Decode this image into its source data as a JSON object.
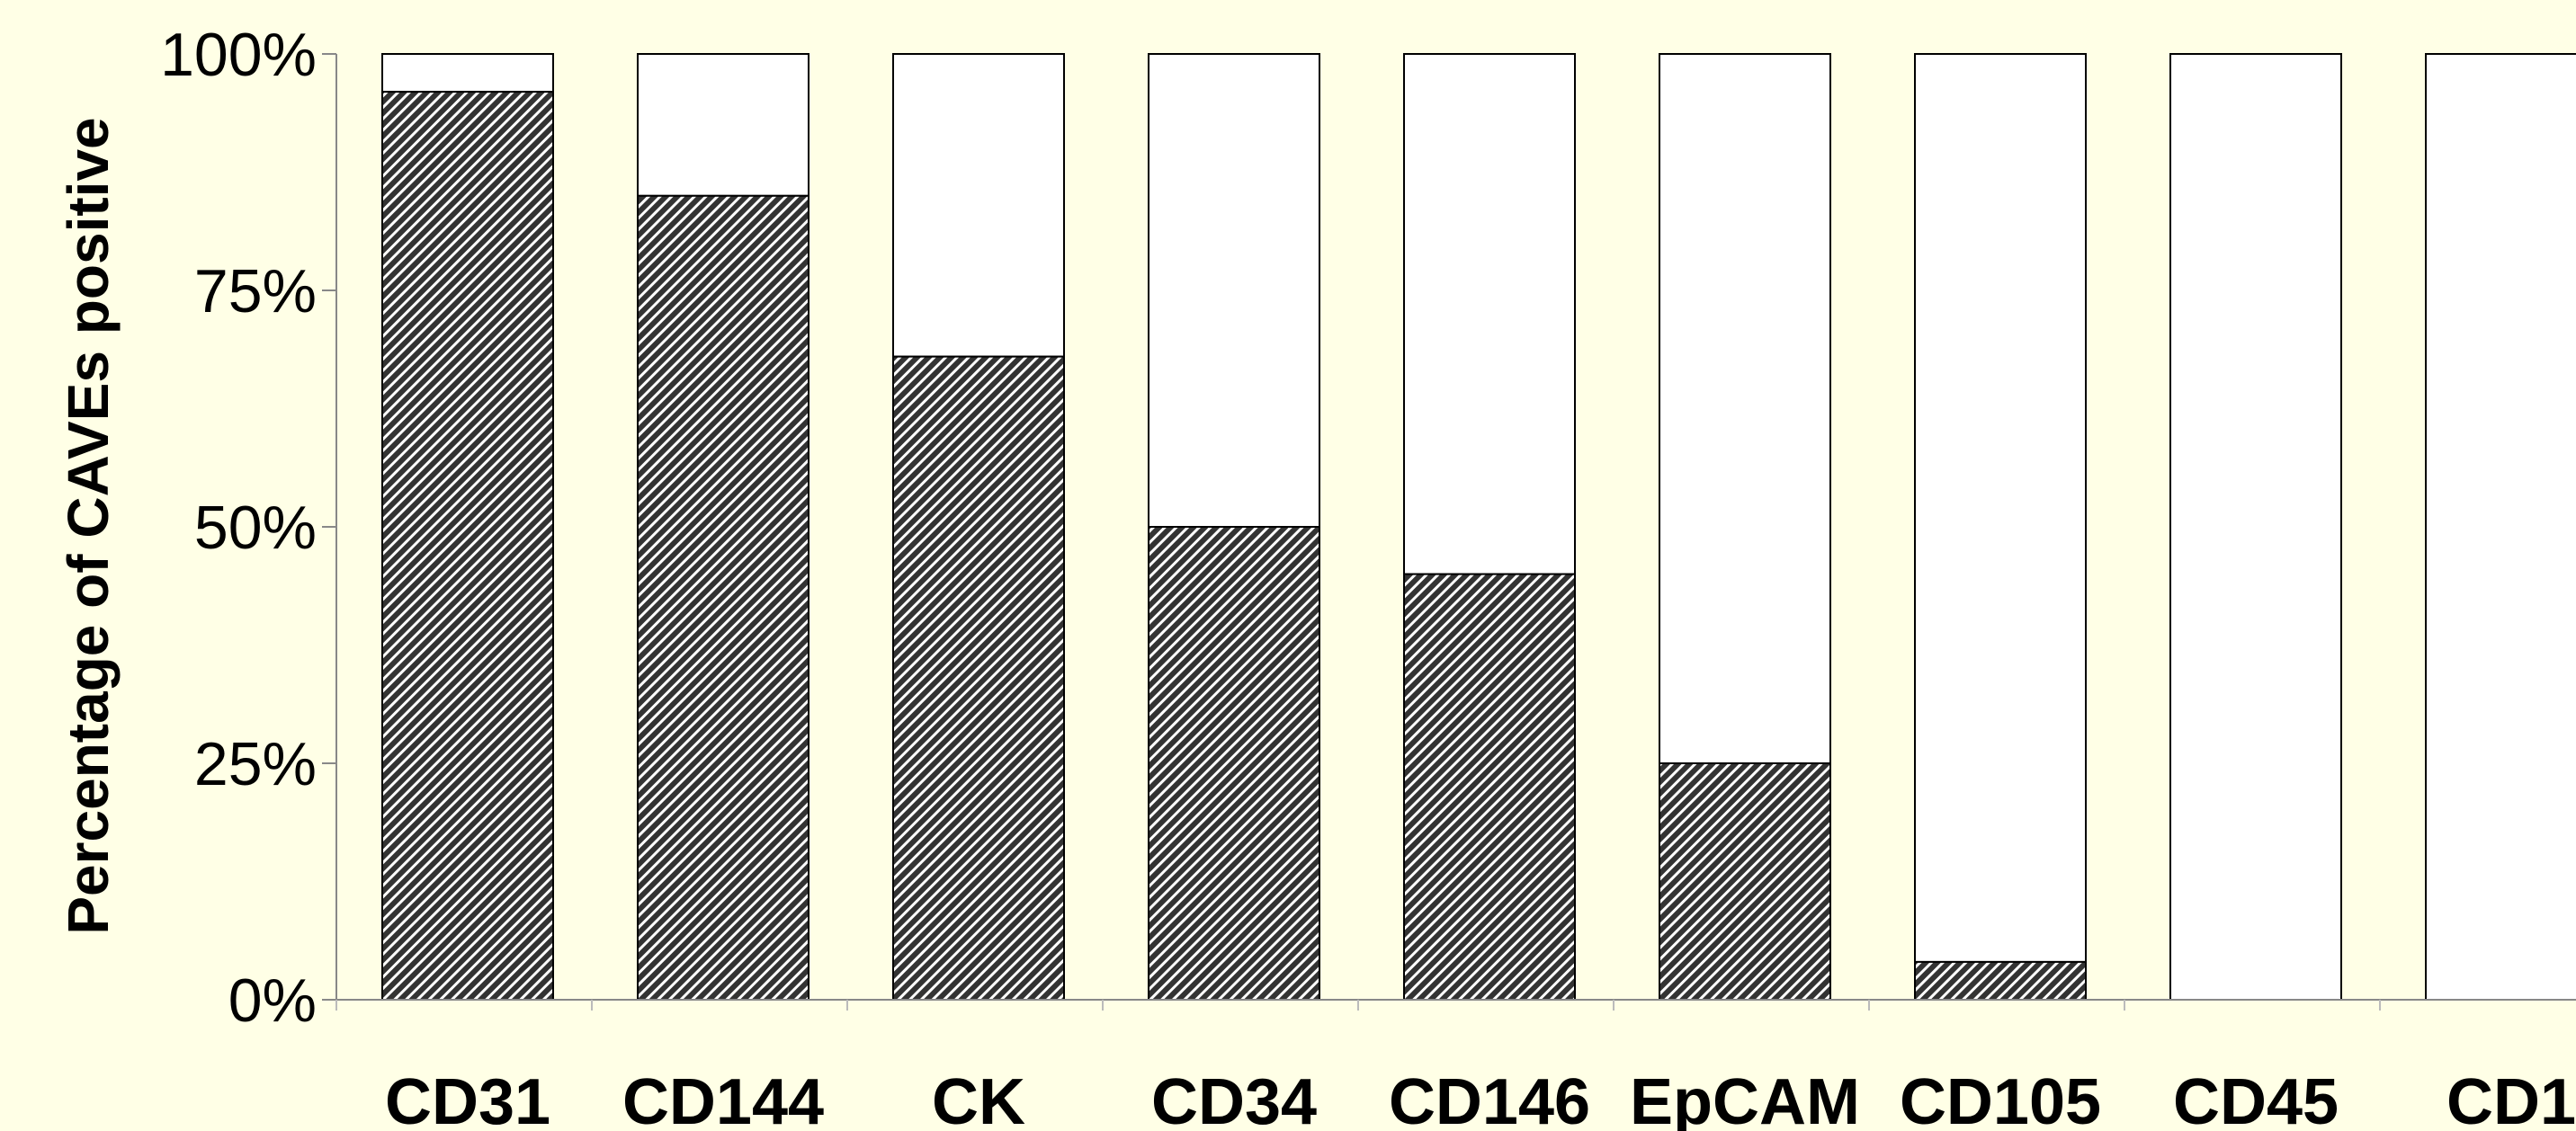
{
  "chart_data": {
    "type": "bar",
    "stacked": true,
    "categories": [
      "CD31",
      "CD144",
      "CK",
      "CD34",
      "CD146",
      "EpCAM",
      "CD105",
      "CD45",
      "CD1"
    ],
    "values": [
      96,
      85,
      68,
      50,
      45,
      25,
      4,
      0,
      0
    ],
    "ylabel": "Percentage of CAVEs positive",
    "ylim": [
      0,
      100
    ],
    "yticks": [
      0,
      25,
      50,
      75,
      100
    ],
    "ytick_labels": [
      "0%",
      "25%",
      "50%",
      "75%",
      "100%"
    ],
    "grid": false,
    "legend": "none",
    "colors": {
      "background": "#ffffe6",
      "positive_fill": "#333333",
      "remainder_fill": "#ffffff",
      "outline": "#000000"
    }
  }
}
